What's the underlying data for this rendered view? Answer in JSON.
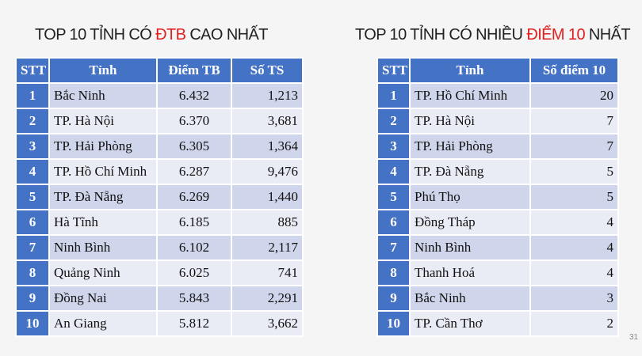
{
  "left": {
    "title_pre": "TOP 10 TỈNH CÓ ",
    "title_hl": "ĐTB",
    "title_post": " CAO NHẤT",
    "headers": [
      "STT",
      "Tỉnh",
      "Điểm TB",
      "Số TS"
    ],
    "rows": [
      [
        "1",
        "Bắc Ninh",
        "6.432",
        "1,213"
      ],
      [
        "2",
        "TP. Hà Nội",
        "6.370",
        "3,681"
      ],
      [
        "3",
        "TP. Hải Phòng",
        "6.305",
        "1,364"
      ],
      [
        "4",
        "TP. Hồ Chí Minh",
        "6.287",
        "9,476"
      ],
      [
        "5",
        "TP. Đà Nẵng",
        "6.269",
        "1,440"
      ],
      [
        "6",
        "Hà Tĩnh",
        "6.185",
        "885"
      ],
      [
        "7",
        "Ninh Bình",
        "6.102",
        "2,117"
      ],
      [
        "8",
        "Quảng Ninh",
        "6.025",
        "741"
      ],
      [
        "9",
        "Đồng Nai",
        "5.843",
        "2,291"
      ],
      [
        "10",
        "An Giang",
        "5.812",
        "3,662"
      ]
    ]
  },
  "right": {
    "title_pre": "TOP 10 TỈNH CÓ NHIỀU ",
    "title_hl": "ĐIỂM 10",
    "title_post": " NHẤT",
    "headers": [
      "STT",
      "Tỉnh",
      "Số điểm 10"
    ],
    "rows": [
      [
        "1",
        "TP. Hồ Chí Minh",
        "20"
      ],
      [
        "2",
        "TP. Hà Nội",
        "7"
      ],
      [
        "3",
        "TP. Hải Phòng",
        "7"
      ],
      [
        "4",
        "TP. Đà Nẵng",
        "5"
      ],
      [
        "5",
        "Phú Thọ",
        "5"
      ],
      [
        "6",
        "Đồng Tháp",
        "4"
      ],
      [
        "7",
        "Ninh Bình",
        "4"
      ],
      [
        "8",
        "Thanh Hoá",
        "4"
      ],
      [
        "9",
        "Bắc Ninh",
        "3"
      ],
      [
        "10",
        "TP. Cần Thơ",
        "2"
      ]
    ]
  },
  "page_number": "31",
  "colors": {
    "header": "#4472c4",
    "highlight": "#e02020",
    "row_odd": "#cfd5ea",
    "row_even": "#e9ebf5"
  }
}
